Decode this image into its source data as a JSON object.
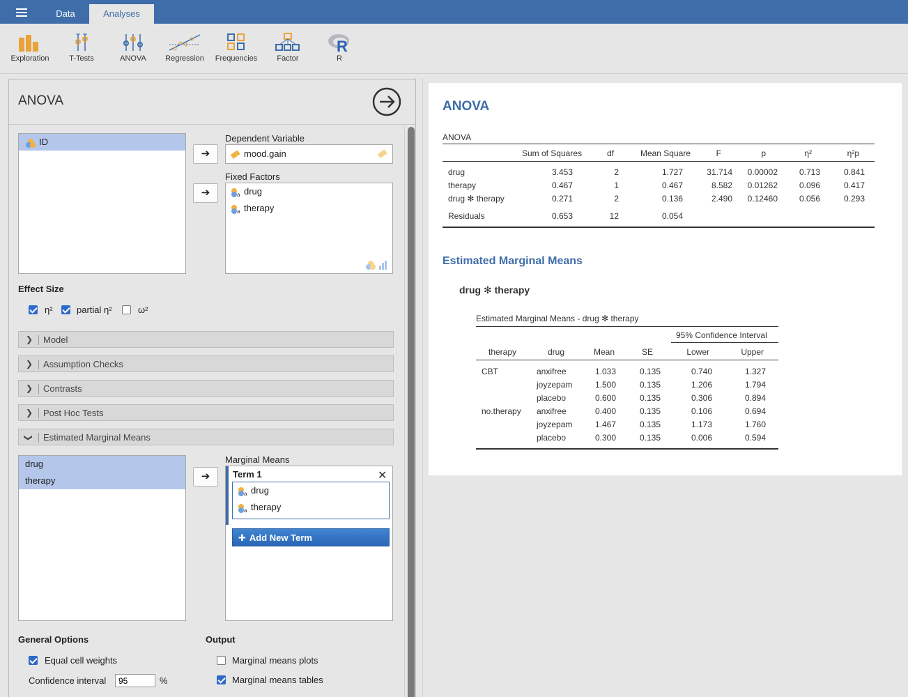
{
  "app": {
    "tabs": [
      {
        "label": "Data"
      },
      {
        "label": "Analyses"
      }
    ],
    "ribbon": [
      {
        "label": "Exploration",
        "icon": "exploration-icon"
      },
      {
        "label": "T-Tests",
        "icon": "t-tests-icon"
      },
      {
        "label": "ANOVA",
        "icon": "anova-icon"
      },
      {
        "label": "Regression",
        "icon": "regression-icon"
      },
      {
        "label": "Frequencies",
        "icon": "frequencies-icon"
      },
      {
        "label": "Factor",
        "icon": "factor-icon"
      },
      {
        "label": "R",
        "icon": "r-icon"
      }
    ]
  },
  "options": {
    "title": "ANOVA",
    "variables": [
      {
        "name": "ID"
      }
    ],
    "dependent_label": "Dependent Variable",
    "dependent_value": "mood.gain",
    "fixed_label": "Fixed Factors",
    "fixed_factors": [
      {
        "name": "drug"
      },
      {
        "name": "therapy"
      }
    ],
    "effect_size": {
      "title": "Effect Size",
      "items": [
        {
          "label": "η²",
          "checked": true
        },
        {
          "label": "partial η²",
          "checked": true
        },
        {
          "label": "ω²",
          "checked": false
        }
      ]
    },
    "sections": [
      {
        "label": "Model",
        "expanded": false
      },
      {
        "label": "Assumption Checks",
        "expanded": false
      },
      {
        "label": "Contrasts",
        "expanded": false
      },
      {
        "label": "Post Hoc Tests",
        "expanded": false
      },
      {
        "label": "Estimated Marginal Means",
        "expanded": true
      }
    ],
    "emm": {
      "available": [
        {
          "name": "drug"
        },
        {
          "name": "therapy"
        }
      ],
      "label": "Marginal Means",
      "term_title": "Term 1",
      "term_items": [
        {
          "name": "drug"
        },
        {
          "name": "therapy"
        }
      ],
      "add_term": "Add New Term"
    },
    "general": {
      "title": "General Options",
      "equal_cell_weights": "Equal cell weights",
      "equal_cell_weights_checked": true,
      "ci_label": "Confidence interval",
      "ci_value": "95",
      "ci_unit": "%"
    },
    "output": {
      "title": "Output",
      "plots": "Marginal means plots",
      "plots_checked": false,
      "tables": "Marginal means tables",
      "tables_checked": true
    }
  },
  "results": {
    "title": "ANOVA",
    "anova_table": {
      "caption": "ANOVA",
      "headers": [
        "",
        "Sum of Squares",
        "df",
        "Mean Square",
        "F",
        "p",
        "η²",
        "η²p"
      ],
      "rows": [
        [
          "drug",
          "3.453",
          "2",
          "1.727",
          "31.714",
          "0.00002",
          "0.713",
          "0.841"
        ],
        [
          "therapy",
          "0.467",
          "1",
          "0.467",
          "8.582",
          "0.01262",
          "0.096",
          "0.417"
        ],
        [
          "drug ✻ therapy",
          "0.271",
          "2",
          "0.136",
          "2.490",
          "0.12460",
          "0.056",
          "0.293"
        ],
        [
          "Residuals",
          "0.653",
          "12",
          "0.054",
          "",
          "",
          "",
          ""
        ]
      ]
    },
    "emm_title": "Estimated Marginal Means",
    "emm_subtitle": "drug ✻ therapy",
    "emm_table": {
      "caption": "Estimated Marginal Means - drug ✻ therapy",
      "ci_header": "95% Confidence Interval",
      "headers": [
        "therapy",
        "drug",
        "Mean",
        "SE",
        "Lower",
        "Upper"
      ],
      "rows": [
        [
          "CBT",
          "anxifree",
          "1.033",
          "0.135",
          "0.740",
          "1.327"
        ],
        [
          "",
          "joyzepam",
          "1.500",
          "0.135",
          "1.206",
          "1.794"
        ],
        [
          "",
          "placebo",
          "0.600",
          "0.135",
          "0.306",
          "0.894"
        ],
        [
          "no.therapy",
          "anxifree",
          "0.400",
          "0.135",
          "0.106",
          "0.694"
        ],
        [
          "",
          "joyzepam",
          "1.467",
          "0.135",
          "1.173",
          "1.760"
        ],
        [
          "",
          "placebo",
          "0.300",
          "0.135",
          "0.006",
          "0.594"
        ]
      ]
    }
  }
}
